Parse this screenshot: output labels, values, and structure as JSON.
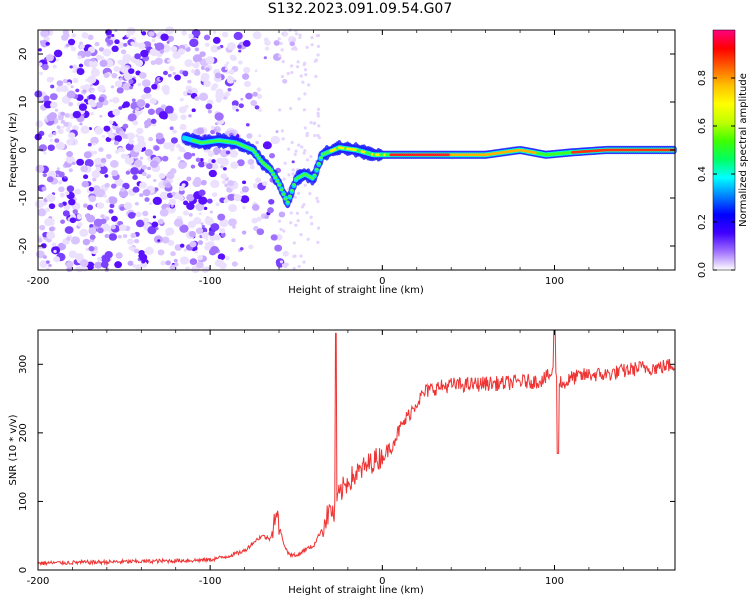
{
  "title": "S132.2023.091.09.54.G07",
  "colors": {
    "snr_line": "#ee3333",
    "axis": "#000000"
  },
  "chart_data": [
    {
      "type": "heatmap",
      "xlabel": "Height of straight line (km)",
      "ylabel": "Frequency (Hz)",
      "xlim": [
        -200,
        170
      ],
      "ylim": [
        -25,
        25
      ],
      "xticks": [
        -200,
        -100,
        0,
        100
      ],
      "yticks": [
        -20,
        -10,
        0,
        10,
        20
      ],
      "colorbar": {
        "label": "Normalized spectral amplitude",
        "range": [
          0,
          1
        ],
        "ticks": [
          0.0,
          0.2,
          0.4,
          0.6,
          0.8
        ],
        "tick_labels": [
          "0.0",
          "0.2",
          "0.4",
          "0.6",
          "0.8"
        ],
        "colormap": [
          "#ffffff",
          "#a070ff",
          "#4000ff",
          "#0000ff",
          "#0080ff",
          "#00ffff",
          "#00ff60",
          "#40ff00",
          "#c0ff00",
          "#ffff00",
          "#ffc000",
          "#ff6000",
          "#ff0000",
          "#ff0080"
        ]
      },
      "ridge": {
        "x": [
          -115,
          -105,
          -95,
          -85,
          -75,
          -70,
          -65,
          -60,
          -55,
          -50,
          -45,
          -40,
          -35,
          -25,
          -15,
          -5,
          5,
          20,
          40,
          60,
          80,
          95,
          110,
          130,
          150,
          170
        ],
        "y": [
          2.5,
          1.5,
          2,
          1.5,
          0,
          -2.5,
          -4,
          -7,
          -11,
          -6,
          -5,
          -6,
          -1,
          0.5,
          0,
          -1,
          -1,
          -1,
          -1,
          -1,
          0,
          -1,
          -0.5,
          0,
          0,
          0
        ]
      }
    },
    {
      "type": "line",
      "xlabel": "Height of straight line (km)",
      "ylabel": "SNR (10 * v/v)",
      "xlim": [
        -200,
        170
      ],
      "ylim": [
        0,
        350
      ],
      "xticks": [
        -200,
        -100,
        0,
        100
      ],
      "yticks": [
        0,
        100,
        200,
        300
      ],
      "series": [
        {
          "x": [
            -200,
            -150,
            -110,
            -100,
            -90,
            -80,
            -75,
            -70,
            -65,
            -62,
            -58,
            -55,
            -50,
            -45,
            -40,
            -35,
            -30,
            -28,
            -25,
            -20,
            -15,
            -10,
            -5,
            0,
            5,
            10,
            15,
            20,
            25,
            30,
            40,
            50,
            60,
            70,
            80,
            90,
            95,
            100,
            105,
            110,
            120,
            130,
            140,
            150,
            160,
            170
          ],
          "y": [
            10,
            12,
            14,
            15,
            20,
            28,
            40,
            50,
            45,
            85,
            45,
            25,
            20,
            30,
            35,
            60,
            90,
            80,
            110,
            130,
            140,
            150,
            160,
            165,
            180,
            205,
            225,
            245,
            260,
            265,
            270,
            270,
            272,
            272,
            275,
            275,
            280,
            290,
            270,
            280,
            285,
            285,
            290,
            295,
            295,
            300
          ]
        }
      ]
    }
  ]
}
